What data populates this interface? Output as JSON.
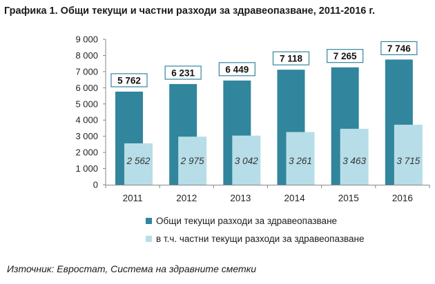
{
  "colors": {
    "total": "#31859c",
    "private": "#b7dee8",
    "label_border": "#31859c"
  },
  "chart_data": {
    "type": "bar",
    "title": "Графика 1. Общи текущи и частни разходи за здравеопазване, 2011-2016 г.",
    "categories": [
      "2011",
      "2012",
      "2013",
      "2014",
      "2015",
      "2016"
    ],
    "series": [
      {
        "name": "Общи текущи разходи за здравеопазване",
        "values": [
          5762,
          6231,
          6449,
          7118,
          7265,
          7746
        ],
        "labels": [
          "5 762",
          "6 231",
          "6 449",
          "7 118",
          "7 265",
          "7 746"
        ]
      },
      {
        "name": "в т.ч. частни текущи разходи за здравеопазване",
        "values": [
          2562,
          2975,
          3042,
          3261,
          3463,
          3715
        ],
        "labels": [
          "2 562",
          "2 975",
          "3 042",
          "3 261",
          "3 463",
          "3 715"
        ]
      }
    ],
    "ylim": [
      0,
      9000
    ],
    "yticks": [
      0,
      1000,
      2000,
      3000,
      4000,
      5000,
      6000,
      7000,
      8000,
      9000
    ],
    "ytick_labels": [
      "0",
      "1 000",
      "2 000",
      "3 000",
      "4 000",
      "5 000",
      "6 000",
      "7 000",
      "8 000",
      "9 000"
    ],
    "grid": false,
    "legend_position": "bottom"
  },
  "source": "Източник: Евростат, Система на здравните сметки"
}
